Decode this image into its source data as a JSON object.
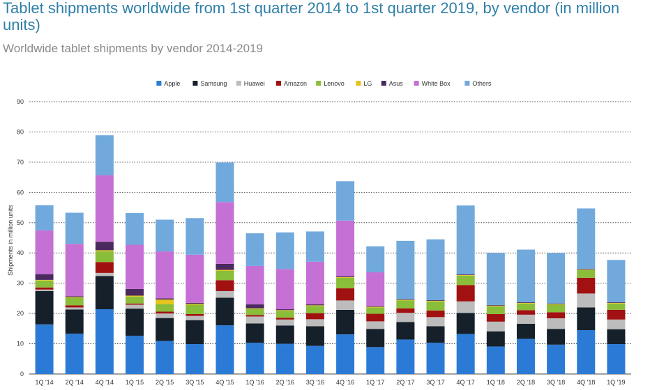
{
  "page": {
    "title": "Tablet shipments worldwide from 1st quarter 2014 to 1st quarter 2019, by vendor (in million units)",
    "subtitle": "Worldwide tablet shipments by vendor 2014-2019"
  },
  "chart_data": {
    "type": "bar",
    "stacked": true,
    "ylabel": "Shipments in million units",
    "ylim": [
      0,
      90
    ],
    "yticks": [
      0,
      10,
      20,
      30,
      40,
      50,
      60,
      70,
      80,
      90
    ],
    "grid": true,
    "legend_position": "top",
    "categories": [
      "1Q '14",
      "2Q '14",
      "4Q '14",
      "1Q '15",
      "2Q '15",
      "3Q '15",
      "4Q '15",
      "1Q '16",
      "2Q '16",
      "3Q '16",
      "4Q '16",
      "1Q '17",
      "2Q '17",
      "3Q '17",
      "4Q '17",
      "1Q '18",
      "2Q '18",
      "3Q '18",
      "4Q '18",
      "1Q '19"
    ],
    "series": [
      {
        "name": "Apple",
        "color": "#2b7bd6",
        "values": [
          16.4,
          13.3,
          21.4,
          12.6,
          10.9,
          9.9,
          16.1,
          10.3,
          10.0,
          9.3,
          13.1,
          8.9,
          11.4,
          10.3,
          13.2,
          9.1,
          11.6,
          9.7,
          14.5,
          9.9
        ]
      },
      {
        "name": "Samsung",
        "color": "#15202b",
        "values": [
          11.0,
          8.0,
          11.0,
          9.0,
          7.6,
          7.9,
          9.1,
          6.4,
          6.0,
          6.5,
          8.1,
          6.0,
          5.8,
          5.5,
          7.0,
          5.0,
          5.0,
          5.2,
          7.5,
          4.9
        ]
      },
      {
        "name": "Huawei",
        "color": "#bcbcbc",
        "values": [
          0.5,
          0.7,
          1.0,
          1.3,
          1.5,
          1.4,
          2.2,
          2.3,
          2.0,
          2.3,
          3.1,
          2.5,
          3.0,
          3.0,
          3.8,
          3.2,
          3.0,
          3.5,
          4.6,
          3.2
        ]
      },
      {
        "name": "Amazon",
        "color": "#a11111",
        "values": [
          0.7,
          0.7,
          3.6,
          0.4,
          0.6,
          0.6,
          3.6,
          0.5,
          0.6,
          2.0,
          4.0,
          2.5,
          1.5,
          2.2,
          5.4,
          2.5,
          1.5,
          2.0,
          5.2,
          3.2
        ]
      },
      {
        "name": "Lenovo",
        "color": "#8abd3a",
        "values": [
          2.3,
          2.5,
          3.6,
          2.3,
          2.5,
          3.1,
          3.1,
          2.0,
          2.3,
          2.4,
          3.5,
          2.1,
          2.6,
          3.0,
          3.1,
          2.6,
          2.2,
          2.5,
          2.5,
          2.1
        ]
      },
      {
        "name": "LG",
        "color": "#e8c31a",
        "values": [
          0.2,
          0.2,
          0.3,
          0.3,
          1.5,
          0.3,
          0.3,
          0.2,
          0.2,
          0.2,
          0.2,
          0.2,
          0.2,
          0.2,
          0.2,
          0.2,
          0.2,
          0.2,
          0.2,
          0.2
        ]
      },
      {
        "name": "Asus",
        "color": "#4a2a5e",
        "values": [
          1.9,
          0.3,
          2.8,
          2.2,
          0.4,
          0.3,
          2.0,
          1.3,
          0.3,
          0.3,
          0.3,
          0.2,
          0.2,
          0.2,
          0.2,
          0.2,
          0.2,
          0.2,
          0.2,
          0.2
        ]
      },
      {
        "name": "White Box",
        "color": "#c570d4",
        "values": [
          14.5,
          17.3,
          22.0,
          14.6,
          15.5,
          15.9,
          20.4,
          12.7,
          13.3,
          14.1,
          18.4,
          11.2,
          0.0,
          0.0,
          0.0,
          0.0,
          0.0,
          0.0,
          0.0,
          0.0
        ]
      },
      {
        "name": "Others",
        "color": "#71a9dc",
        "values": [
          8.3,
          10.3,
          13.2,
          10.5,
          10.5,
          12.1,
          13.1,
          10.8,
          12.1,
          10.0,
          13.0,
          8.6,
          19.3,
          20.1,
          22.8,
          17.2,
          17.4,
          16.7,
          20.0,
          14.0
        ]
      }
    ]
  }
}
